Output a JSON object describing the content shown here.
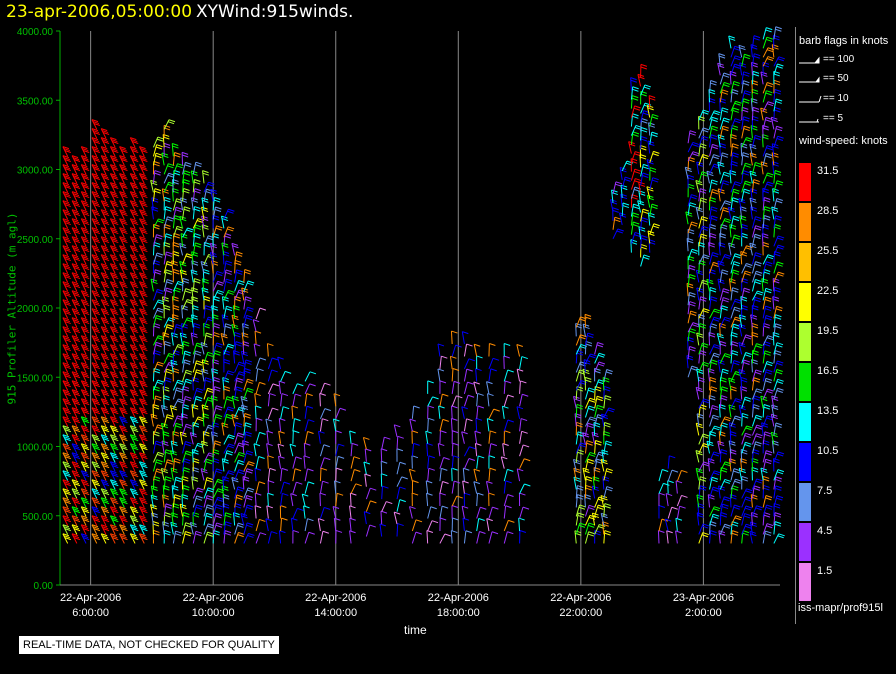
{
  "header": {
    "time": "23-apr-2006,05:00:00",
    "name": "XYWind:915winds."
  },
  "chart_data": {
    "type": "scatter",
    "title": "23-apr-2006,05:00:00  XYWind:915winds.",
    "xlabel": "time",
    "ylabel_main": "915 Profiler Altitude",
    "ylabel_unit": "(m agl)",
    "ylim": [
      0,
      4000
    ],
    "y_ticks": [
      "0.00",
      "500.00",
      "1000.00",
      "1500.00",
      "2000.00",
      "2500.00",
      "3000.00",
      "3500.00",
      "4000.00"
    ],
    "x_ticks": [
      {
        "date": "22-Apr-2006",
        "time": "6:00:00"
      },
      {
        "date": "22-Apr-2006",
        "time": "10:00:00"
      },
      {
        "date": "22-Apr-2006",
        "time": "14:00:00"
      },
      {
        "date": "22-Apr-2006",
        "time": "18:00:00"
      },
      {
        "date": "22-Apr-2006",
        "time": "22:00:00"
      },
      {
        "date": "23-Apr-2006",
        "time": "2:00:00"
      }
    ],
    "x_range_hours": [
      5.0,
      28.5
    ],
    "speed_bins": [
      1.5,
      4.5,
      7.5,
      10.5,
      13.5,
      16.5,
      19.5,
      22.5,
      25.5,
      28.5,
      31.5
    ],
    "speed_colors": [
      "#ee82ee",
      "#9b30ff",
      "#6495ed",
      "#0000ff",
      "#00ffff",
      "#00ff00",
      "#adff2f",
      "#ffff00",
      "#ffd700",
      "#ff8c00",
      "#ff0000"
    ],
    "columns": [
      {
        "t": 5.25,
        "levels": [
          [
            300,
            3100,
            "r"
          ]
        ]
      },
      {
        "t": 5.55,
        "levels": [
          [
            300,
            3050,
            "r"
          ]
        ]
      },
      {
        "t": 5.85,
        "levels": [
          [
            300,
            3150,
            "r"
          ]
        ]
      },
      {
        "t": 6.2,
        "levels": [
          [
            300,
            3300,
            "r"
          ]
        ]
      },
      {
        "t": 6.5,
        "levels": [
          [
            300,
            3250,
            "r"
          ]
        ]
      },
      {
        "t": 6.8,
        "levels": [
          [
            300,
            3200,
            "r"
          ]
        ]
      },
      {
        "t": 7.1,
        "levels": [
          [
            300,
            3150,
            "r"
          ]
        ]
      },
      {
        "t": 7.45,
        "levels": [
          [
            300,
            3200,
            "r"
          ]
        ]
      },
      {
        "t": 7.75,
        "levels": [
          [
            300,
            3150,
            "r"
          ]
        ]
      },
      {
        "t": 8.05,
        "levels": [
          [
            300,
            3200,
            "m"
          ]
        ]
      },
      {
        "t": 8.4,
        "levels": [
          [
            300,
            3300,
            "m"
          ]
        ]
      },
      {
        "t": 8.7,
        "levels": [
          [
            300,
            3100,
            "m"
          ]
        ]
      },
      {
        "t": 9.0,
        "levels": [
          [
            300,
            3050,
            "g"
          ]
        ]
      },
      {
        "t": 9.35,
        "levels": [
          [
            300,
            3000,
            "g"
          ]
        ]
      },
      {
        "t": 9.7,
        "levels": [
          [
            300,
            2900,
            "g"
          ]
        ]
      },
      {
        "t": 10.0,
        "levels": [
          [
            300,
            2800,
            "b"
          ]
        ]
      },
      {
        "t": 10.35,
        "levels": [
          [
            300,
            2700,
            "b"
          ]
        ]
      },
      {
        "t": 10.7,
        "levels": [
          [
            300,
            2400,
            "b"
          ]
        ]
      },
      {
        "t": 11.0,
        "levels": [
          [
            300,
            2200,
            "b"
          ]
        ]
      },
      {
        "t": 11.4,
        "levels": [
          [
            300,
            2000,
            "p"
          ]
        ]
      },
      {
        "t": 11.8,
        "levels": [
          [
            300,
            1700,
            "p"
          ]
        ]
      },
      {
        "t": 12.2,
        "levels": [
          [
            300,
            1600,
            "p"
          ]
        ]
      },
      {
        "t": 12.6,
        "levels": [
          [
            300,
            1450,
            "p"
          ]
        ]
      },
      {
        "t": 13.0,
        "levels": [
          [
            300,
            1500,
            "p"
          ]
        ]
      },
      {
        "t": 13.5,
        "levels": [
          [
            300,
            1400,
            "p"
          ]
        ]
      },
      {
        "t": 14.0,
        "levels": [
          [
            300,
            1300,
            "p"
          ]
        ]
      },
      {
        "t": 14.5,
        "levels": [
          [
            300,
            1100,
            "p"
          ]
        ]
      },
      {
        "t": 15.0,
        "levels": [
          [
            350,
            1050,
            "p"
          ]
        ]
      },
      {
        "t": 15.5,
        "levels": [
          [
            350,
            1000,
            "p"
          ]
        ]
      },
      {
        "t": 16.0,
        "levels": [
          [
            350,
            1150,
            "p"
          ]
        ]
      },
      {
        "t": 16.5,
        "levels": [
          [
            300,
            1200,
            "p"
          ]
        ]
      },
      {
        "t": 17.0,
        "levels": [
          [
            300,
            1400,
            "p"
          ]
        ]
      },
      {
        "t": 17.4,
        "levels": [
          [
            300,
            1700,
            "p"
          ]
        ]
      },
      {
        "t": 17.8,
        "levels": [
          [
            300,
            1800,
            "p"
          ]
        ]
      },
      {
        "t": 18.2,
        "levels": [
          [
            300,
            1750,
            "p"
          ]
        ]
      },
      {
        "t": 18.6,
        "levels": [
          [
            300,
            1700,
            "p"
          ]
        ]
      },
      {
        "t": 19.0,
        "levels": [
          [
            300,
            1700,
            "p"
          ]
        ]
      },
      {
        "t": 19.5,
        "levels": [
          [
            300,
            1700,
            "p"
          ]
        ]
      },
      {
        "t": 20.0,
        "levels": [
          [
            300,
            1700,
            "p"
          ]
        ]
      },
      {
        "t": 21.85,
        "levels": [
          [
            300,
            1900,
            "m"
          ]
        ]
      },
      {
        "t": 22.15,
        "levels": [
          [
            300,
            1900,
            "m"
          ]
        ]
      },
      {
        "t": 22.45,
        "levels": [
          [
            300,
            1700,
            "m"
          ]
        ]
      },
      {
        "t": 22.75,
        "levels": [
          [
            300,
            1500,
            "m"
          ]
        ]
      },
      {
        "t": 23.05,
        "levels": [
          [
            2500,
            2850,
            "b"
          ]
        ]
      },
      {
        "t": 23.35,
        "levels": [
          [
            2600,
            3000,
            "b"
          ]
        ]
      },
      {
        "t": 23.65,
        "levels": [
          [
            2400,
            3600,
            "c"
          ]
        ]
      },
      {
        "t": 23.95,
        "levels": [
          [
            2300,
            3700,
            "c"
          ]
        ]
      },
      {
        "t": 24.25,
        "levels": [
          [
            2400,
            3500,
            "c"
          ]
        ]
      },
      {
        "t": 24.55,
        "levels": [
          [
            300,
            800,
            "p"
          ]
        ]
      },
      {
        "t": 24.85,
        "levels": [
          [
            300,
            900,
            "p"
          ]
        ]
      },
      {
        "t": 25.15,
        "levels": [
          [
            300,
            800,
            "p"
          ]
        ]
      },
      {
        "t": 25.5,
        "levels": [
          [
            1500,
            3200,
            "b"
          ]
        ]
      },
      {
        "t": 25.85,
        "levels": [
          [
            300,
            3400,
            "g"
          ]
        ]
      },
      {
        "t": 26.2,
        "levels": [
          [
            300,
            3600,
            "b"
          ]
        ]
      },
      {
        "t": 26.55,
        "levels": [
          [
            300,
            3800,
            "b"
          ]
        ]
      },
      {
        "t": 26.9,
        "levels": [
          [
            300,
            3900,
            "b"
          ]
        ]
      },
      {
        "t": 27.25,
        "levels": [
          [
            300,
            3850,
            "b"
          ]
        ]
      },
      {
        "t": 27.6,
        "levels": [
          [
            300,
            3900,
            "b"
          ]
        ]
      },
      {
        "t": 27.95,
        "levels": [
          [
            300,
            3950,
            "b"
          ]
        ]
      },
      {
        "t": 28.3,
        "levels": [
          [
            300,
            4000,
            "b"
          ]
        ]
      }
    ]
  },
  "legend": {
    "flags_title": "barb flags in knots",
    "flags": [
      "== 100",
      "== 50",
      "== 10",
      "== 5"
    ],
    "speed_title": "wind-speed: knots",
    "speed_labels": [
      "31.5",
      "28.5",
      "25.5",
      "22.5",
      "19.5",
      "16.5",
      "13.5",
      "10.5",
      "7.5",
      "4.5",
      "1.5"
    ],
    "speed_colors_top_down": [
      "#ff0000",
      "#ff8c00",
      "#ffbf00",
      "#ffff00",
      "#adff2f",
      "#00e000",
      "#00ffff",
      "#0000ff",
      "#6495ed",
      "#9b30ff",
      "#ee82ee"
    ]
  },
  "source_label": "iss-mapr/prof915l",
  "footer_note": "REAL-TIME DATA, NOT CHECKED FOR QUALITY"
}
